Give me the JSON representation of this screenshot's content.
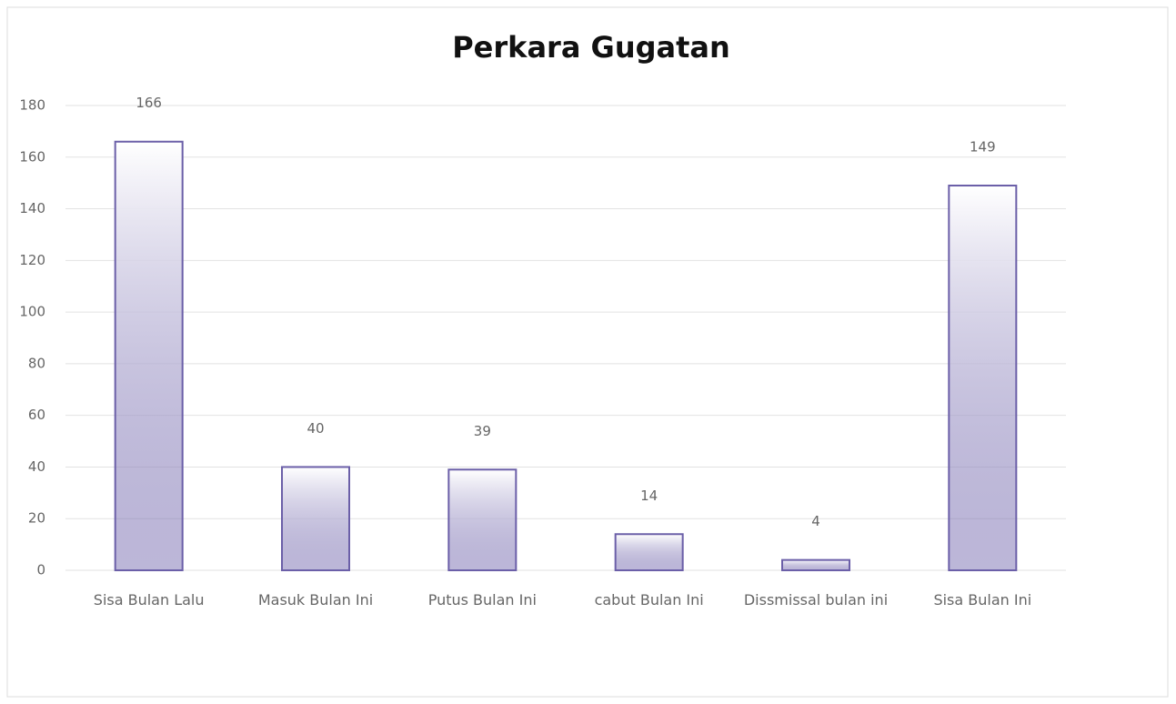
{
  "chart_data": {
    "type": "bar",
    "title": "Perkara Gugatan",
    "categories": [
      "Sisa Bulan Lalu",
      "Masuk Bulan Ini",
      "Putus Bulan Ini",
      "cabut Bulan Ini",
      "Dissmissal bulan ini",
      "Sisa Bulan Ini"
    ],
    "values": [
      166,
      40,
      39,
      14,
      4,
      149
    ],
    "color": "#6b5fa8",
    "ylim": [
      0,
      180
    ],
    "yticks": [
      0,
      20,
      40,
      60,
      80,
      100,
      120,
      140,
      160,
      180
    ],
    "grid": true
  }
}
